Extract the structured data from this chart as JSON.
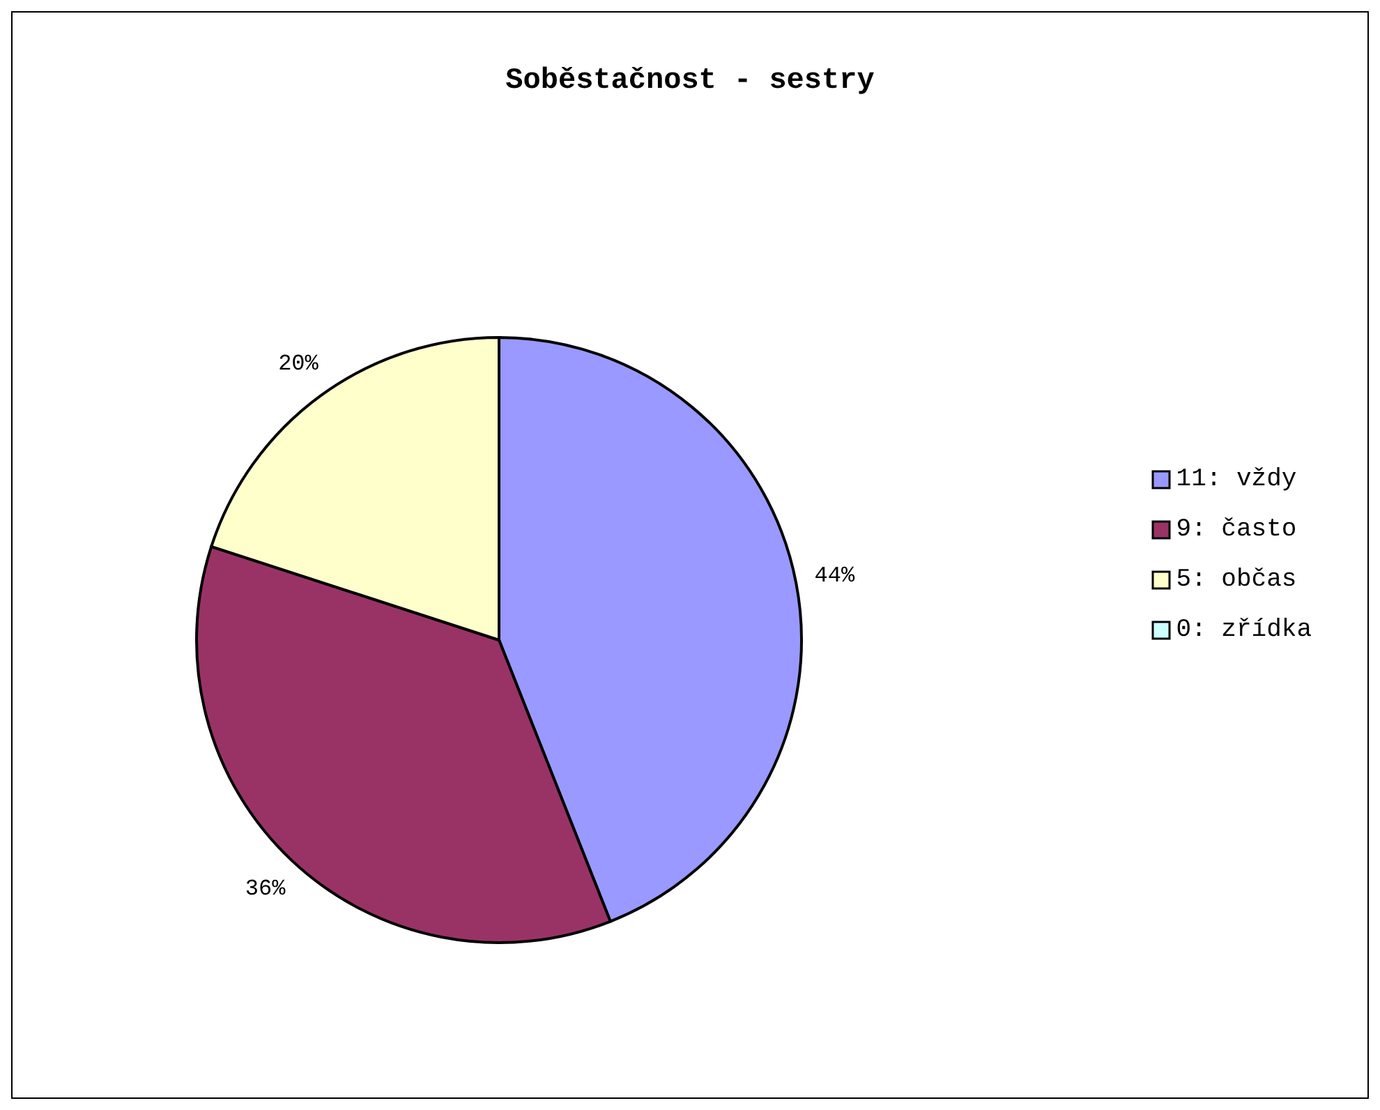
{
  "chart_data": {
    "type": "pie",
    "title": "Soběstačnost - sestry",
    "categories": [
      "11: vždy",
      "9: často",
      "5: občas",
      "0: zřídka"
    ],
    "values": [
      44,
      36,
      20,
      0
    ],
    "colors": [
      "#9999ff",
      "#993366",
      "#ffffcc",
      "#ccffff"
    ],
    "value_labels": [
      "44%",
      "36%",
      "20%",
      null
    ],
    "legend": "right"
  }
}
